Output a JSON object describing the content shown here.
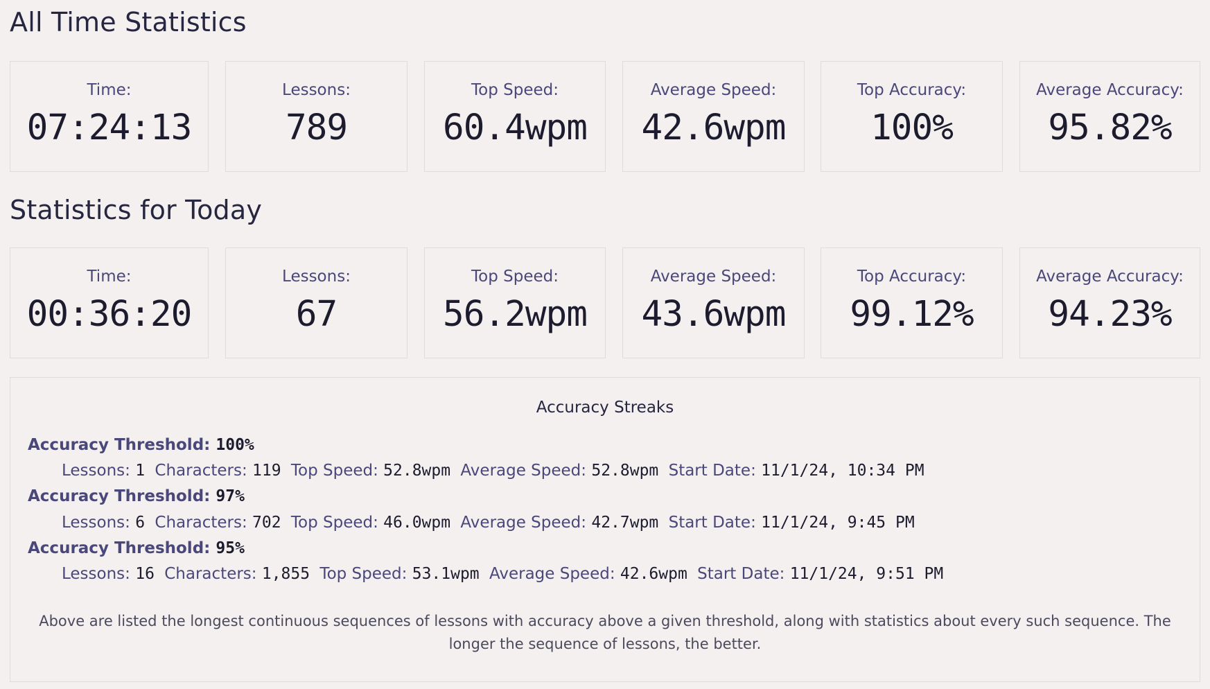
{
  "all_time": {
    "title": "All Time Statistics",
    "stats": [
      {
        "label": "Time:",
        "value": "07:24:13"
      },
      {
        "label": "Lessons:",
        "value": "789"
      },
      {
        "label": "Top Speed:",
        "value": "60.4wpm"
      },
      {
        "label": "Average Speed:",
        "value": "42.6wpm"
      },
      {
        "label": "Top Accuracy:",
        "value": "100%"
      },
      {
        "label": "Average Accuracy:",
        "value": "95.82%"
      }
    ]
  },
  "today": {
    "title": "Statistics for Today",
    "stats": [
      {
        "label": "Time:",
        "value": "00:36:20"
      },
      {
        "label": "Lessons:",
        "value": "67"
      },
      {
        "label": "Top Speed:",
        "value": "56.2wpm"
      },
      {
        "label": "Average Speed:",
        "value": "43.6wpm"
      },
      {
        "label": "Top Accuracy:",
        "value": "99.12%"
      },
      {
        "label": "Average Accuracy:",
        "value": "94.23%"
      }
    ]
  },
  "streaks": {
    "title": "Accuracy Streaks",
    "threshold_label": "Accuracy Threshold:",
    "lessons_label": "Lessons:",
    "characters_label": "Characters:",
    "top_speed_label": "Top Speed:",
    "avg_speed_label": "Average Speed:",
    "start_date_label": "Start Date:",
    "items": [
      {
        "threshold": "100%",
        "lessons": "1",
        "characters": "119",
        "top_speed": "52.8wpm",
        "avg_speed": "52.8wpm",
        "start_date": "11/1/24, 10:34 PM"
      },
      {
        "threshold": "97%",
        "lessons": "6",
        "characters": "702",
        "top_speed": "46.0wpm",
        "avg_speed": "42.7wpm",
        "start_date": "11/1/24, 9:45 PM"
      },
      {
        "threshold": "95%",
        "lessons": "16",
        "characters": "1,855",
        "top_speed": "53.1wpm",
        "avg_speed": "42.6wpm",
        "start_date": "11/1/24, 9:51 PM"
      }
    ],
    "note": "Above are listed the longest continuous sequences of lessons with accuracy above a given threshold, along with statistics about every such sequence. The longer the sequence of lessons, the better."
  }
}
